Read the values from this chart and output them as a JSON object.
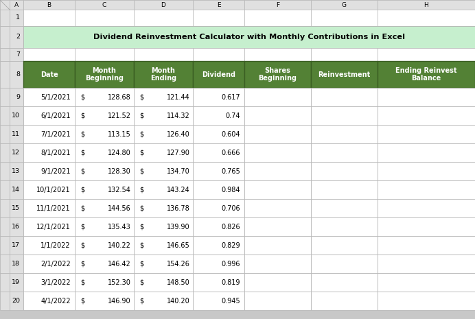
{
  "title": "Dividend Reinvestment Calculator with Monthly Contributions in Excel",
  "title_bg": "#c6efce",
  "header_bg": "#538135",
  "header_text_color": "#ffffff",
  "header_labels": [
    "Date",
    "Month\nBeginning",
    "Month\nEnding",
    "Dividend",
    "Shares\nBeginning",
    "Reinvestment",
    "Ending Reinvest\nBalance"
  ],
  "col_letters": [
    "A",
    "B",
    "C",
    "D",
    "E",
    "F",
    "G",
    "H"
  ],
  "rows": [
    [
      "5/1/2021",
      "128.68",
      "121.44",
      "0.617"
    ],
    [
      "6/1/2021",
      "121.52",
      "114.32",
      "0.74"
    ],
    [
      "7/1/2021",
      "113.15",
      "126.40",
      "0.604"
    ],
    [
      "8/1/2021",
      "124.80",
      "127.90",
      "0.666"
    ],
    [
      "9/1/2021",
      "128.30",
      "134.70",
      "0.765"
    ],
    [
      "10/1/2021",
      "132.54",
      "143.24",
      "0.984"
    ],
    [
      "11/1/2021",
      "144.56",
      "136.78",
      "0.706"
    ],
    [
      "12/1/2021",
      "135.43",
      "139.90",
      "0.826"
    ],
    [
      "1/1/2022",
      "140.22",
      "146.65",
      "0.829"
    ],
    [
      "2/1/2022",
      "146.42",
      "154.26",
      "0.996"
    ],
    [
      "3/1/2022",
      "152.30",
      "148.50",
      "0.819"
    ],
    [
      "4/1/2022",
      "146.90",
      "140.20",
      "0.945"
    ]
  ],
  "cell_bg_white": "#ffffff",
  "grid_color": "#b0b0b0",
  "row_header_bg": "#e0e0e0",
  "col_header_bg": "#e0e0e0",
  "outer_bg": "#c8c8c8",
  "header_border": "#538135",
  "fontsize_col_header": 6.5,
  "fontsize_row_header": 6.8,
  "fontsize_title": 8.2,
  "fontsize_header": 7.0,
  "fontsize_data": 7.0
}
